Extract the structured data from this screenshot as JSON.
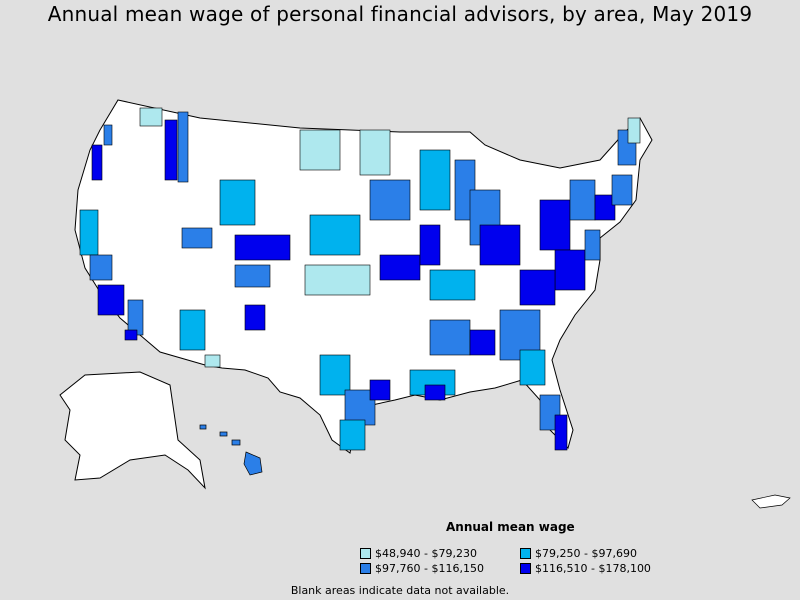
{
  "title": "Annual mean wage of personal financial advisors, by area, May 2019",
  "legend": {
    "title": "Annual mean wage",
    "items": [
      {
        "label": "$48,940 - $79,230",
        "color": "#aee8ee"
      },
      {
        "label": "$79,250 - $97,690",
        "color": "#00b2ee"
      },
      {
        "label": "$97,760 - $116,150",
        "color": "#2b7fe8"
      },
      {
        "label": "$116,510 - $178,100",
        "color": "#0000ee"
      }
    ]
  },
  "footnote": "Blank areas indicate data not available.",
  "colors": {
    "background": "#e0e0e0",
    "no_data": "#ffffff",
    "border": "#000000"
  }
}
